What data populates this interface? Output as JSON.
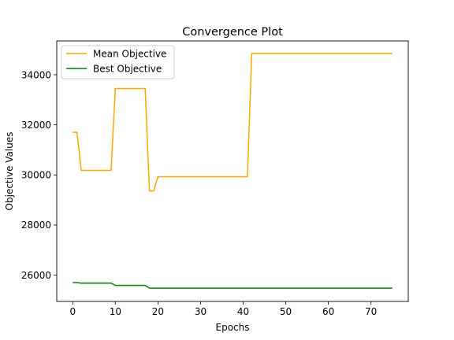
{
  "chart_data": {
    "type": "line",
    "title": "Convergence Plot",
    "xlabel": "Epochs",
    "ylabel": "Objective Values",
    "xlim": [
      -3.75,
      78.75
    ],
    "ylim": [
      24950,
      35350
    ],
    "xticks": [
      0,
      10,
      20,
      30,
      40,
      50,
      60,
      70
    ],
    "yticks": [
      26000,
      28000,
      30000,
      32000,
      34000
    ],
    "ytick_labels": [
      "26000",
      "28000",
      "30000",
      "32000",
      "34000"
    ],
    "grid": false,
    "legend": {
      "placement": "upper-left"
    },
    "series": [
      {
        "name": "Mean Objective",
        "color": "#ffa500",
        "x": [
          0,
          1,
          2,
          3,
          9,
          10,
          11,
          17,
          18,
          19,
          20,
          21,
          41,
          42,
          43,
          75
        ],
        "y": [
          31700,
          31700,
          30180,
          30180,
          30180,
          33450,
          33450,
          33450,
          29360,
          29360,
          29930,
          29930,
          29930,
          34850,
          34850,
          34850
        ]
      },
      {
        "name": "Best Objective",
        "color": "#008000",
        "x": [
          0,
          1,
          2,
          9,
          10,
          17,
          18,
          75
        ],
        "y": [
          25700,
          25700,
          25680,
          25680,
          25590,
          25590,
          25480,
          25480
        ]
      }
    ]
  }
}
